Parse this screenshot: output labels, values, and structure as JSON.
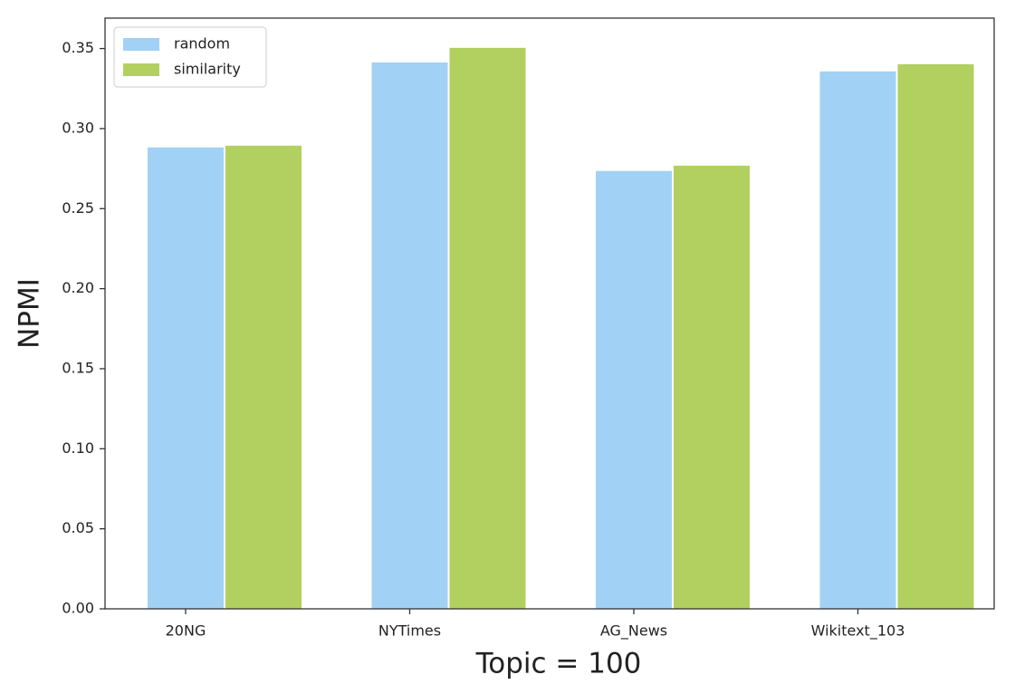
{
  "chart_data": {
    "type": "bar",
    "categories": [
      "20NG",
      "NYTimes",
      "AG_News",
      "Wikitext_103"
    ],
    "series": [
      {
        "name": "random",
        "color": "#a1d1f5",
        "values": [
          0.2885,
          0.3416,
          0.2738,
          0.336
        ]
      },
      {
        "name": "similarity",
        "color": "#b1d05f",
        "values": [
          0.2896,
          0.3507,
          0.2771,
          0.3405
        ]
      }
    ],
    "xlabel": "Topic = 100",
    "ylabel": "NPMI",
    "ylim": [
      0,
      0.369
    ],
    "yticks": [
      {
        "value": 0,
        "label": "0.00"
      },
      0.05,
      {
        "value": 0.1,
        "label": "0.10"
      },
      0.15,
      {
        "value": 0.2,
        "label": "0.20"
      },
      0.25,
      {
        "value": 0.3,
        "label": "0.30"
      },
      0.35
    ],
    "legend": "upper left"
  }
}
